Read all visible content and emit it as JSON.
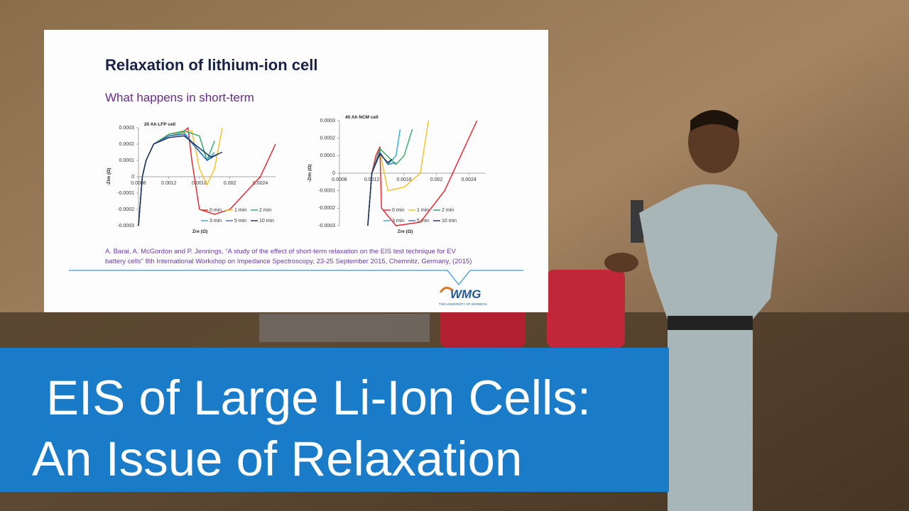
{
  "slide": {
    "title": "Relaxation of lithium-ion cell",
    "subtitle": "What happens in short-term",
    "citation": [
      "A. Barai, A. McGordon and P. Jennings, “A study of the effect of short-term relaxation on the EIS test technique for EV",
      "battery cells” 8th International Workshop on Impedance Spectroscopy, 23-25 September 2015,  Chemnitz, Germany, (2015)"
    ],
    "logo": "WMG",
    "logo_sub": "THE UNIVERSITY OF WARWICK"
  },
  "chart_data": [
    {
      "type": "line",
      "title": "20 Ah LFP cell",
      "x_label": "Zre (Ω)",
      "y_label": "-Zim (Ω)",
      "xlim": [
        0.0008,
        0.0026
      ],
      "xticks": [
        0.0008,
        0.0012,
        0.0016,
        0.002,
        0.0024
      ],
      "ylim": [
        -0.0003,
        0.0003
      ],
      "yticks": [
        -0.0003,
        -0.0002,
        -0.0001,
        0,
        0.0001,
        0.0002,
        0.0003
      ],
      "series": [
        {
          "name": "0 min",
          "color": "#e8202a",
          "x": [
            0.0008,
            0.00085,
            0.0009,
            0.001,
            0.0012,
            0.0014,
            0.00145,
            0.0015,
            0.0016,
            0.0018,
            0.002,
            0.0022,
            0.0024,
            0.0026
          ],
          "values": [
            -0.0003,
            0,
            0.0001,
            0.0002,
            0.00026,
            0.00028,
            0.0003,
            0.0001,
            -0.0002,
            -0.00023,
            -0.0002,
            -0.0001,
            0,
            0.0002
          ]
        },
        {
          "name": "1 min",
          "color": "#f0c020",
          "x": [
            0.0008,
            0.00085,
            0.0009,
            0.001,
            0.0012,
            0.0015,
            0.0016,
            0.0017,
            0.0018,
            0.0019
          ],
          "values": [
            -0.0003,
            0,
            0.0001,
            0.0002,
            0.00026,
            0.00028,
            5e-05,
            -5e-05,
            5e-05,
            0.0003
          ]
        },
        {
          "name": "2 min",
          "color": "#2aa860",
          "x": [
            0.0008,
            0.00085,
            0.0009,
            0.001,
            0.0012,
            0.0014,
            0.0016,
            0.0017,
            0.0018
          ],
          "values": [
            -0.0003,
            0,
            0.0001,
            0.0002,
            0.00026,
            0.00028,
            0.00025,
            0.0001,
            0.00022
          ]
        },
        {
          "name": "3 min",
          "color": "#29a8d8",
          "x": [
            0.0008,
            0.00085,
            0.0009,
            0.001,
            0.0012,
            0.0014,
            0.0017,
            0.0018
          ],
          "values": [
            -0.0003,
            0,
            0.0001,
            0.0002,
            0.00025,
            0.00027,
            0.0001,
            0.00015
          ]
        },
        {
          "name": "5 min",
          "color": "#3a6fc0",
          "x": [
            0.0008,
            0.00085,
            0.0009,
            0.001,
            0.0012,
            0.0014,
            0.0017,
            0.00185
          ],
          "values": [
            -0.0003,
            0,
            0.0001,
            0.0002,
            0.00025,
            0.00026,
            0.0001,
            0.00014
          ]
        },
        {
          "name": "10 min",
          "color": "#1a2a5a",
          "x": [
            0.0008,
            0.00085,
            0.0009,
            0.001,
            0.0012,
            0.0014,
            0.00175,
            0.0019
          ],
          "values": [
            -0.0003,
            0,
            0.0001,
            0.0002,
            0.00024,
            0.00025,
            0.00012,
            0.00015
          ]
        }
      ]
    },
    {
      "type": "line",
      "title": "40 Ah NCM cell",
      "x_label": "Zre (Ω)",
      "y_label": "-Zim (Ω)",
      "xlim": [
        0.0008,
        0.0026
      ],
      "xticks": [
        0.0008,
        0.0012,
        0.0016,
        0.002,
        0.0024
      ],
      "ylim": [
        -0.0003,
        0.0003
      ],
      "yticks": [
        -0.0003,
        -0.0002,
        -0.0001,
        0,
        0.0001,
        0.0002,
        0.0003
      ],
      "series": [
        {
          "name": "0 min",
          "color": "#e8202a",
          "x": [
            0.00115,
            0.0012,
            0.00125,
            0.0013,
            0.00132,
            0.0015,
            0.0018,
            0.0021,
            0.0023,
            0.0025
          ],
          "values": [
            -0.0003,
            0,
            0.0001,
            0.00015,
            -0.0002,
            -0.0003,
            -0.00028,
            -0.0001,
            0.0001,
            0.0003
          ]
        },
        {
          "name": "1 min",
          "color": "#f0c020",
          "x": [
            0.00115,
            0.0012,
            0.0013,
            0.0014,
            0.0016,
            0.0018,
            0.0019
          ],
          "values": [
            -0.0003,
            0,
            0.00012,
            -0.0001,
            -8e-05,
            0,
            0.0003
          ]
        },
        {
          "name": "2 min",
          "color": "#2aa860",
          "x": [
            0.00115,
            0.0012,
            0.0013,
            0.0015,
            0.0016,
            0.0017
          ],
          "values": [
            -0.0003,
            0,
            0.00014,
            5e-05,
            0.0001,
            0.00025
          ]
        },
        {
          "name": "3 min",
          "color": "#29a8d8",
          "x": [
            0.00115,
            0.0012,
            0.0013,
            0.0014,
            0.0015,
            0.00155
          ],
          "values": [
            -0.0003,
            0,
            0.00012,
            5e-05,
            0.0001,
            0.00025
          ]
        },
        {
          "name": "5 min",
          "color": "#3a6fc0",
          "x": [
            0.00115,
            0.0012,
            0.0013,
            0.0014,
            0.0015
          ],
          "values": [
            -0.0003,
            0,
            0.00012,
            5e-05,
            6e-05
          ]
        },
        {
          "name": "10 min",
          "color": "#1a2a5a",
          "x": [
            0.00115,
            0.0012,
            0.0013,
            0.0014,
            0.00145
          ],
          "values": [
            -0.0003,
            0,
            0.00011,
            6e-05,
            8e-05
          ]
        }
      ]
    }
  ],
  "banner": {
    "lines": [
      "EIS of Large Li-Ion Cells:",
      "An Issue of Relaxation"
    ]
  }
}
